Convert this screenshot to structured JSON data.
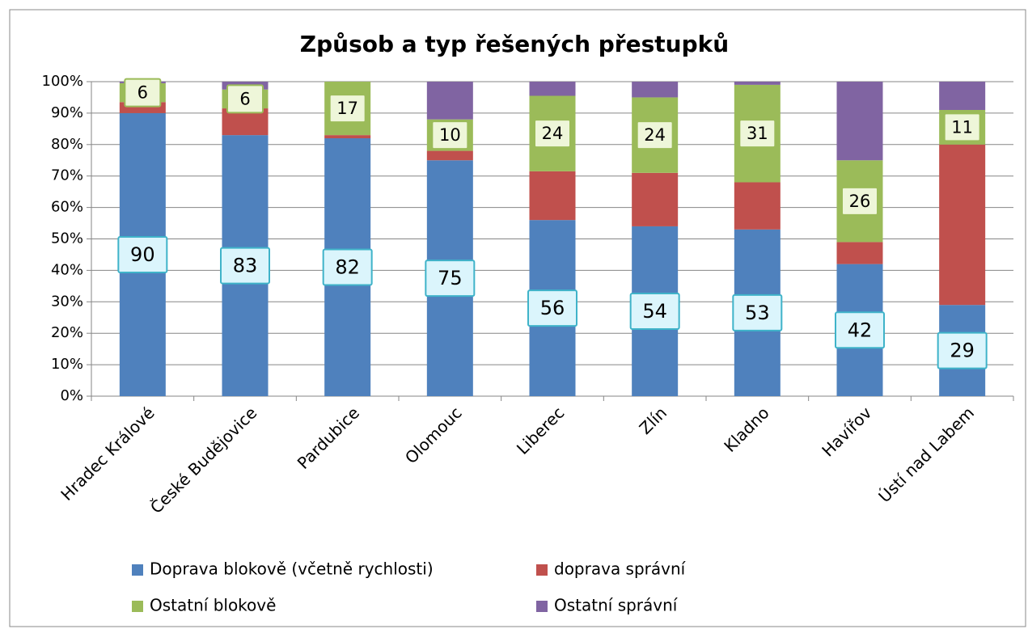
{
  "chart_data": {
    "type": "stacked_bar",
    "title": "Způsob a typ řešených přestupků",
    "categories": [
      "Hradec Králové",
      "České Budějovice",
      "Pardubice",
      "Olomouc",
      "Liberec",
      "Zlín",
      "Kladno",
      "Havířov",
      "Ústí nad Labem"
    ],
    "series": [
      {
        "name": "Doprava blokově (včetně rychlosti)",
        "color": "#4f81bd",
        "data_labels": true,
        "values": [
          90,
          83,
          82,
          75,
          56,
          54,
          53,
          42,
          29
        ]
      },
      {
        "name": "doprava správní",
        "color": "#c0504d",
        "data_labels": false,
        "values": [
          3.5,
          8.5,
          1,
          3,
          15.5,
          17,
          15,
          7,
          51
        ]
      },
      {
        "name": "Ostatní blokově",
        "color": "#9bbb59",
        "data_labels": true,
        "values": [
          6,
          6,
          17,
          10,
          24,
          24,
          31,
          26,
          11
        ]
      },
      {
        "name": "Ostatní správní",
        "color": "#8064a2",
        "data_labels": false,
        "values": [
          0.5,
          2.5,
          0,
          12,
          4.5,
          5,
          1,
          25,
          9
        ]
      }
    ],
    "ylim": [
      0,
      100
    ],
    "yticks": [
      {
        "value": 0,
        "label": "0%"
      },
      {
        "value": 10,
        "label": "10%"
      },
      {
        "value": 20,
        "label": "20%"
      },
      {
        "value": 30,
        "label": "30%"
      },
      {
        "value": 40,
        "label": "40%"
      },
      {
        "value": 50,
        "label": "50%"
      },
      {
        "value": 60,
        "label": "60%"
      },
      {
        "value": 70,
        "label": "70%"
      },
      {
        "value": 80,
        "label": "80%"
      },
      {
        "value": 90,
        "label": "90%"
      },
      {
        "value": 100,
        "label": "100%"
      }
    ],
    "grid": true,
    "legend": "bottom"
  }
}
